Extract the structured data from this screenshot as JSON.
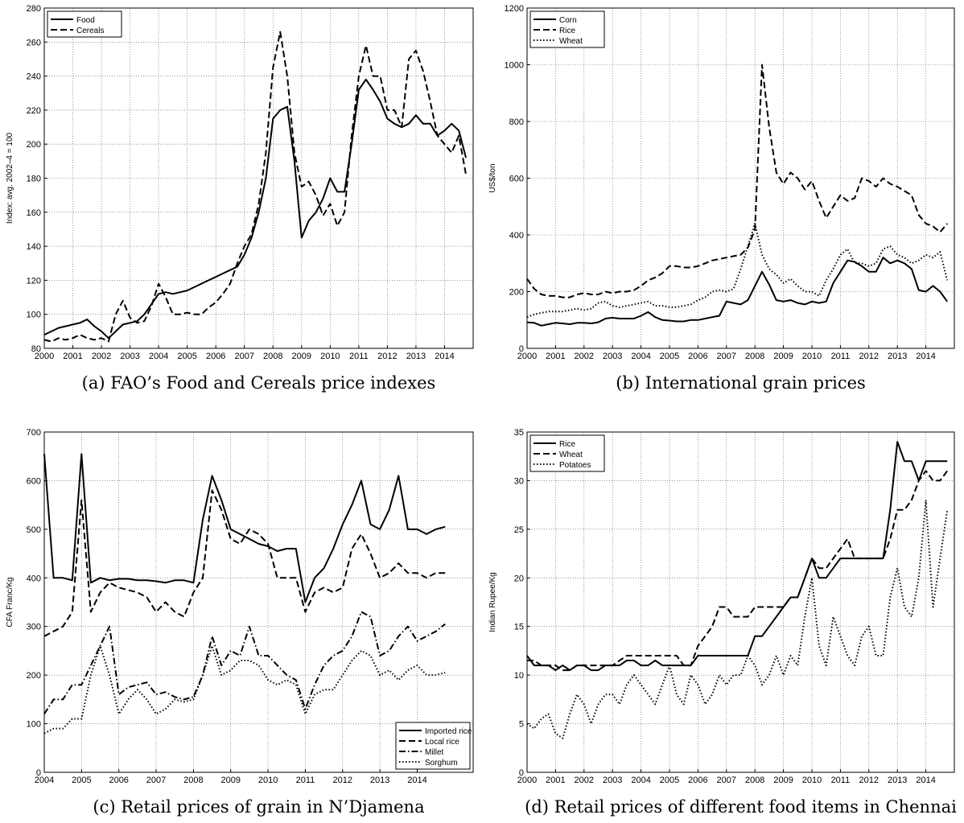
{
  "chart_data": [
    {
      "type": "line",
      "caption": "(a) FAO’s Food and Cereals price indexes",
      "ylabel": "Index: avg. 2002–4 = 100",
      "xlim": [
        2000,
        2015
      ],
      "ylim": [
        80,
        280
      ],
      "xticks": [
        2000,
        2001,
        2002,
        2003,
        2004,
        2005,
        2006,
        2007,
        2008,
        2009,
        2010,
        2011,
        2012,
        2013,
        2014
      ],
      "yticks": [
        80,
        100,
        120,
        140,
        160,
        180,
        200,
        220,
        240,
        260,
        280
      ],
      "grid": true,
      "legend": "upper left",
      "x": [
        2000,
        2000.25,
        2000.5,
        2000.75,
        2001,
        2001.25,
        2001.5,
        2001.75,
        2002,
        2002.25,
        2002.5,
        2002.75,
        2003,
        2003.25,
        2003.5,
        2003.75,
        2004,
        2004.25,
        2004.5,
        2004.75,
        2005,
        2005.25,
        2005.5,
        2005.75,
        2006,
        2006.25,
        2006.5,
        2006.75,
        2007,
        2007.25,
        2007.5,
        2007.75,
        2008,
        2008.25,
        2008.5,
        2008.75,
        2009,
        2009.25,
        2009.5,
        2009.75,
        2010,
        2010.25,
        2010.5,
        2010.75,
        2011,
        2011.25,
        2011.5,
        2011.75,
        2012,
        2012.25,
        2012.5,
        2012.75,
        2013,
        2013.25,
        2013.5,
        2013.75,
        2014,
        2014.25,
        2014.5,
        2014.75
      ],
      "series": [
        {
          "name": "Food",
          "color": "#000000",
          "linestyle": "solid",
          "values": [
            88,
            90,
            92,
            93,
            94,
            95,
            97,
            93,
            90,
            86,
            90,
            94,
            95,
            96,
            100,
            106,
            112,
            113,
            112,
            113,
            114,
            116,
            118,
            120,
            122,
            124,
            126,
            128,
            135,
            145,
            160,
            180,
            215,
            220,
            222,
            190,
            145,
            155,
            160,
            168,
            180,
            172,
            172,
            200,
            232,
            238,
            232,
            225,
            215,
            212,
            210,
            212,
            217,
            212,
            212,
            205,
            208,
            212,
            208,
            192
          ]
        },
        {
          "name": "Cereals",
          "color": "#000000",
          "linestyle": "dashed",
          "values": [
            85,
            84,
            86,
            85,
            86,
            88,
            86,
            85,
            86,
            84,
            100,
            108,
            98,
            95,
            96,
            105,
            118,
            110,
            100,
            100,
            101,
            100,
            100,
            104,
            107,
            112,
            118,
            130,
            140,
            147,
            165,
            195,
            245,
            266,
            240,
            195,
            175,
            178,
            170,
            158,
            165,
            152,
            160,
            205,
            240,
            258,
            240,
            240,
            220,
            220,
            210,
            250,
            255,
            243,
            225,
            205,
            200,
            195,
            205,
            182
          ]
        }
      ]
    },
    {
      "type": "line",
      "caption": "(b) International grain prices",
      "ylabel": "US$/ton",
      "xlim": [
        2000,
        2015
      ],
      "ylim": [
        0,
        1200
      ],
      "xticks": [
        2000,
        2001,
        2002,
        2003,
        2004,
        2005,
        2006,
        2007,
        2008,
        2009,
        2010,
        2011,
        2012,
        2013,
        2014
      ],
      "yticks": [
        0,
        200,
        400,
        600,
        800,
        1000,
        1200
      ],
      "grid": true,
      "legend": "upper left",
      "x": [
        2000,
        2000.25,
        2000.5,
        2000.75,
        2001,
        2001.25,
        2001.5,
        2001.75,
        2002,
        2002.25,
        2002.5,
        2002.75,
        2003,
        2003.25,
        2003.5,
        2003.75,
        2004,
        2004.25,
        2004.5,
        2004.75,
        2005,
        2005.25,
        2005.5,
        2005.75,
        2006,
        2006.25,
        2006.5,
        2006.75,
        2007,
        2007.25,
        2007.5,
        2007.75,
        2008,
        2008.25,
        2008.5,
        2008.75,
        2009,
        2009.25,
        2009.5,
        2009.75,
        2010,
        2010.25,
        2010.5,
        2010.75,
        2011,
        2011.25,
        2011.5,
        2011.75,
        2012,
        2012.25,
        2012.5,
        2012.75,
        2013,
        2013.25,
        2013.5,
        2013.75,
        2014,
        2014.25,
        2014.5,
        2014.75
      ],
      "series": [
        {
          "name": "Corn",
          "color": "#000000",
          "linestyle": "solid",
          "values": [
            92,
            90,
            80,
            85,
            90,
            88,
            85,
            90,
            90,
            88,
            92,
            105,
            108,
            105,
            105,
            105,
            115,
            128,
            110,
            100,
            98,
            95,
            95,
            100,
            100,
            105,
            110,
            115,
            165,
            160,
            155,
            170,
            220,
            270,
            225,
            170,
            165,
            170,
            160,
            155,
            165,
            160,
            165,
            230,
            270,
            310,
            305,
            290,
            270,
            270,
            320,
            300,
            310,
            300,
            280,
            205,
            200,
            220,
            200,
            165
          ]
        },
        {
          "name": "Rice",
          "color": "#000000",
          "linestyle": "dashed",
          "values": [
            245,
            210,
            190,
            185,
            185,
            180,
            180,
            190,
            195,
            190,
            190,
            200,
            195,
            200,
            200,
            205,
            220,
            240,
            250,
            265,
            290,
            290,
            285,
            285,
            290,
            300,
            310,
            315,
            320,
            325,
            330,
            355,
            420,
            1000,
            780,
            620,
            580,
            620,
            600,
            560,
            590,
            520,
            460,
            500,
            540,
            520,
            530,
            600,
            590,
            570,
            600,
            580,
            570,
            555,
            540,
            470,
            440,
            430,
            410,
            440
          ]
        },
        {
          "name": "Wheat",
          "color": "#000000",
          "linestyle": "dotted",
          "values": [
            110,
            120,
            125,
            130,
            130,
            130,
            135,
            140,
            135,
            140,
            160,
            165,
            150,
            145,
            150,
            155,
            160,
            165,
            150,
            150,
            145,
            145,
            150,
            155,
            170,
            180,
            200,
            205,
            200,
            210,
            280,
            360,
            440,
            330,
            280,
            260,
            230,
            245,
            220,
            200,
            200,
            185,
            240,
            280,
            330,
            350,
            300,
            300,
            290,
            300,
            350,
            360,
            330,
            320,
            300,
            310,
            330,
            320,
            340,
            240
          ]
        }
      ]
    },
    {
      "type": "line",
      "caption": "(c) Retail prices of grain in N’Djamena",
      "ylabel": "CFA Franc/Kg",
      "xlim": [
        2004,
        2015.5
      ],
      "ylim": [
        0,
        700
      ],
      "xticks": [
        2004,
        2005,
        2006,
        2007,
        2008,
        2009,
        2010,
        2011,
        2012,
        2013,
        2014
      ],
      "yticks": [
        0,
        100,
        200,
        300,
        400,
        500,
        600,
        700
      ],
      "grid": true,
      "legend": "lower right",
      "x": [
        2004,
        2004.25,
        2004.5,
        2004.75,
        2005,
        2005.25,
        2005.5,
        2005.75,
        2006,
        2006.25,
        2006.5,
        2006.75,
        2007,
        2007.25,
        2007.5,
        2007.75,
        2008,
        2008.25,
        2008.5,
        2008.75,
        2009,
        2009.25,
        2009.5,
        2009.75,
        2010,
        2010.25,
        2010.5,
        2010.75,
        2011,
        2011.25,
        2011.5,
        2011.75,
        2012,
        2012.25,
        2012.5,
        2012.75,
        2013,
        2013.25,
        2013.5,
        2013.75,
        2014,
        2014.25,
        2014.5,
        2014.75
      ],
      "series": [
        {
          "name": "Imported rice",
          "color": "#000000",
          "linestyle": "solid",
          "values": [
            655,
            400,
            400,
            395,
            655,
            390,
            400,
            395,
            398,
            398,
            395,
            395,
            393,
            390,
            395,
            395,
            390,
            520,
            610,
            560,
            500,
            490,
            480,
            470,
            465,
            455,
            460,
            460,
            350,
            400,
            420,
            460,
            510,
            550,
            600,
            510,
            500,
            540,
            610,
            500,
            500,
            490,
            500,
            505
          ]
        },
        {
          "name": "Local rice",
          "color": "#000000",
          "linestyle": "dashed",
          "values": [
            280,
            290,
            300,
            330,
            560,
            330,
            370,
            390,
            380,
            375,
            370,
            360,
            330,
            350,
            330,
            320,
            370,
            400,
            580,
            540,
            480,
            470,
            500,
            490,
            470,
            400,
            400,
            400,
            330,
            370,
            380,
            370,
            380,
            460,
            490,
            450,
            400,
            410,
            430,
            410,
            410,
            400,
            410,
            410
          ]
        },
        {
          "name": "Millet",
          "color": "#000000",
          "linestyle": "dashdot",
          "values": [
            120,
            150,
            150,
            180,
            180,
            220,
            260,
            300,
            160,
            175,
            180,
            185,
            160,
            165,
            155,
            150,
            155,
            200,
            280,
            220,
            250,
            240,
            300,
            240,
            240,
            220,
            200,
            190,
            130,
            180,
            220,
            240,
            250,
            280,
            330,
            320,
            240,
            250,
            280,
            300,
            270,
            280,
            290,
            305
          ]
        },
        {
          "name": "Sorghum",
          "color": "#000000",
          "linestyle": "dotted",
          "values": [
            80,
            90,
            90,
            110,
            110,
            200,
            260,
            200,
            120,
            150,
            170,
            150,
            120,
            130,
            150,
            145,
            150,
            200,
            260,
            200,
            210,
            230,
            230,
            220,
            190,
            180,
            190,
            180,
            120,
            160,
            170,
            170,
            200,
            230,
            250,
            240,
            200,
            210,
            190,
            210,
            220,
            200,
            200,
            205
          ]
        }
      ]
    },
    {
      "type": "line",
      "caption": "(d) Retail prices of different food items in Chennai",
      "ylabel": "Indian Rupee/Kg",
      "xlim": [
        2000,
        2015
      ],
      "ylim": [
        0,
        35
      ],
      "xticks": [
        2000,
        2001,
        2002,
        2003,
        2004,
        2005,
        2006,
        2007,
        2008,
        2009,
        2010,
        2011,
        2012,
        2013,
        2014
      ],
      "yticks": [
        0,
        5,
        10,
        15,
        20,
        25,
        30,
        35
      ],
      "grid": true,
      "legend": "upper left",
      "x": [
        2000,
        2000.25,
        2000.5,
        2000.75,
        2001,
        2001.25,
        2001.5,
        2001.75,
        2002,
        2002.25,
        2002.5,
        2002.75,
        2003,
        2003.25,
        2003.5,
        2003.75,
        2004,
        2004.25,
        2004.5,
        2004.75,
        2005,
        2005.25,
        2005.5,
        2005.75,
        2006,
        2006.25,
        2006.5,
        2006.75,
        2007,
        2007.25,
        2007.5,
        2007.75,
        2008,
        2008.25,
        2008.5,
        2008.75,
        2009,
        2009.25,
        2009.5,
        2009.75,
        2010,
        2010.25,
        2010.5,
        2010.75,
        2011,
        2011.25,
        2011.5,
        2011.75,
        2012,
        2012.25,
        2012.5,
        2012.75,
        2013,
        2013.25,
        2013.5,
        2013.75,
        2014,
        2014.25,
        2014.5,
        2014.75
      ],
      "series": [
        {
          "name": "Rice",
          "color": "#000000",
          "linestyle": "solid",
          "values": [
            12,
            11,
            11,
            11,
            10.5,
            11,
            10.5,
            11,
            11,
            10.5,
            10.5,
            11,
            11,
            11,
            11.5,
            11.5,
            11,
            11,
            11.5,
            11,
            11,
            11,
            11,
            11,
            12,
            12,
            12,
            12,
            12,
            12,
            12,
            12,
            14,
            14,
            15,
            16,
            17,
            18,
            18,
            20,
            22,
            20,
            20,
            21,
            22,
            22,
            22,
            22,
            22,
            22,
            22,
            27,
            34,
            32,
            32,
            30,
            32,
            32,
            32,
            32
          ]
        },
        {
          "name": "Wheat",
          "color": "#000000",
          "linestyle": "dashed",
          "values": [
            11.5,
            11.5,
            11,
            11,
            11,
            10.5,
            10.5,
            11,
            11,
            11,
            11,
            11,
            11,
            11.5,
            12,
            12,
            12,
            12,
            12,
            12,
            12,
            12,
            11,
            11,
            13,
            14,
            15,
            17,
            17,
            16,
            16,
            16,
            17,
            17,
            17,
            17,
            17,
            18,
            18,
            20,
            22,
            21,
            21,
            22,
            23,
            24,
            22,
            22,
            22,
            22,
            22,
            24,
            27,
            27,
            28,
            30,
            31,
            30,
            30,
            31
          ]
        },
        {
          "name": "Potatoes",
          "color": "#000000",
          "linestyle": "dotted",
          "values": [
            5,
            4.5,
            5.5,
            6,
            4,
            3.5,
            6,
            8,
            7,
            5,
            7,
            8,
            8,
            7,
            9,
            10,
            9,
            8,
            7,
            9,
            11,
            8,
            7,
            10,
            9,
            7,
            8,
            10,
            9,
            10,
            10,
            12,
            11,
            9,
            10,
            12,
            10,
            12,
            11,
            16,
            20,
            13,
            11,
            16,
            14,
            12,
            11,
            14,
            15,
            12,
            12,
            18,
            21,
            17,
            16,
            20,
            28,
            17,
            22,
            27
          ]
        }
      ]
    }
  ]
}
